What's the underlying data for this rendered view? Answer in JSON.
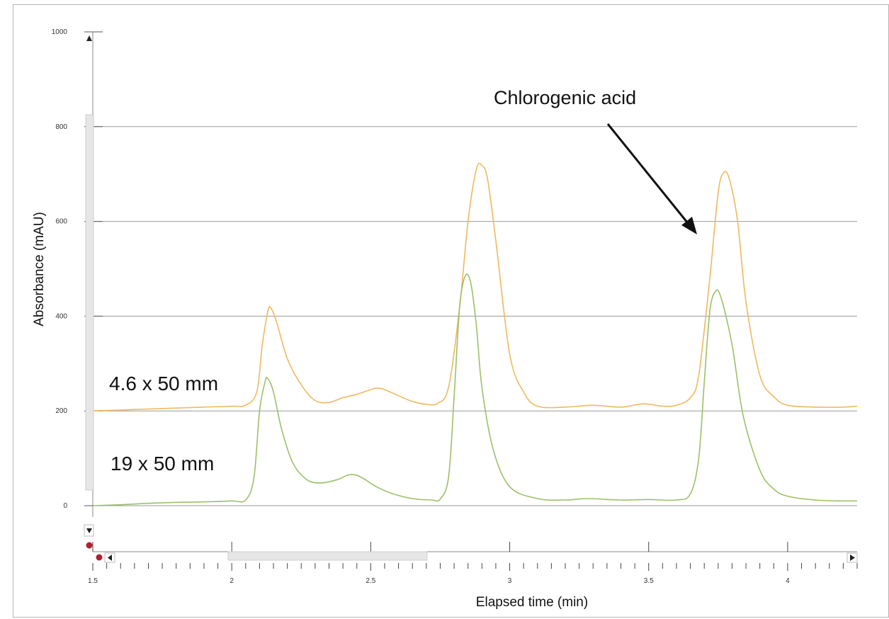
{
  "chart_data": {
    "type": "line",
    "title": "",
    "xlabel": "Elapsed time (min)",
    "ylabel": "Absorbance (mAU)",
    "xlim": [
      1.5,
      4.25
    ],
    "ylim": [
      -100,
      1000
    ],
    "x_ticks": [
      1.5,
      2,
      2.5,
      3,
      3.5,
      4
    ],
    "x_tick_labels": [
      "1.5",
      "2",
      "2.5",
      "3",
      "3.5",
      "4"
    ],
    "y_ticks": [
      0,
      200,
      400,
      600,
      800,
      1000
    ],
    "y_tick_labels": [
      "0",
      "200",
      "400",
      "600",
      "800",
      "1000"
    ],
    "grid": true,
    "colors": {
      "series_1": "#f0b860",
      "series_2": "#9cc068",
      "grid": "#999999",
      "arrow": "#111111"
    },
    "series": [
      {
        "name": "4.6 x 50 mm",
        "color": "#f0b860",
        "x": [
          1.5,
          1.6,
          1.7,
          1.8,
          1.9,
          2.0,
          2.05,
          2.09,
          2.11,
          2.13,
          2.14,
          2.16,
          2.2,
          2.25,
          2.3,
          2.35,
          2.4,
          2.45,
          2.5,
          2.52,
          2.55,
          2.6,
          2.65,
          2.7,
          2.74,
          2.78,
          2.82,
          2.85,
          2.88,
          2.9,
          2.92,
          2.95,
          3.0,
          3.05,
          3.1,
          3.2,
          3.3,
          3.4,
          3.48,
          3.55,
          3.6,
          3.65,
          3.68,
          3.72,
          3.75,
          3.77,
          3.79,
          3.82,
          3.85,
          3.9,
          3.95,
          4.0,
          4.1,
          4.2,
          4.25
        ],
        "y": [
          200,
          202,
          204,
          206,
          208,
          210,
          212,
          240,
          340,
          410,
          418,
          390,
          310,
          255,
          222,
          218,
          228,
          235,
          245,
          248,
          245,
          232,
          220,
          214,
          216,
          250,
          420,
          600,
          710,
          718,
          690,
          560,
          320,
          240,
          210,
          208,
          212,
          208,
          215,
          210,
          212,
          228,
          275,
          480,
          660,
          703,
          690,
          600,
          430,
          275,
          230,
          212,
          208,
          208,
          210
        ]
      },
      {
        "name": "19 x 50 mm",
        "color": "#9cc068",
        "x": [
          1.5,
          1.6,
          1.7,
          1.8,
          1.9,
          2.0,
          2.05,
          2.08,
          2.1,
          2.12,
          2.13,
          2.15,
          2.18,
          2.22,
          2.27,
          2.32,
          2.38,
          2.42,
          2.45,
          2.48,
          2.52,
          2.58,
          2.65,
          2.72,
          2.75,
          2.78,
          2.8,
          2.82,
          2.84,
          2.86,
          2.88,
          2.9,
          2.94,
          3.0,
          3.1,
          3.2,
          3.28,
          3.4,
          3.5,
          3.6,
          3.65,
          3.68,
          3.7,
          3.72,
          3.74,
          3.76,
          3.8,
          3.84,
          3.9,
          3.95,
          4.0,
          4.1,
          4.2,
          4.25
        ],
        "y": [
          0,
          2,
          5,
          7,
          8,
          10,
          12,
          60,
          200,
          262,
          268,
          240,
          160,
          90,
          55,
          48,
          55,
          65,
          64,
          55,
          40,
          25,
          15,
          12,
          14,
          60,
          230,
          420,
          485,
          470,
          380,
          250,
          120,
          40,
          15,
          12,
          15,
          12,
          13,
          12,
          25,
          100,
          260,
          410,
          452,
          440,
          340,
          190,
          75,
          35,
          20,
          12,
          10,
          10
        ]
      }
    ],
    "annotations": [
      {
        "text": "Chlorogenic acid",
        "points_to_x": 3.74,
        "points_to_y": 576
      }
    ]
  }
}
